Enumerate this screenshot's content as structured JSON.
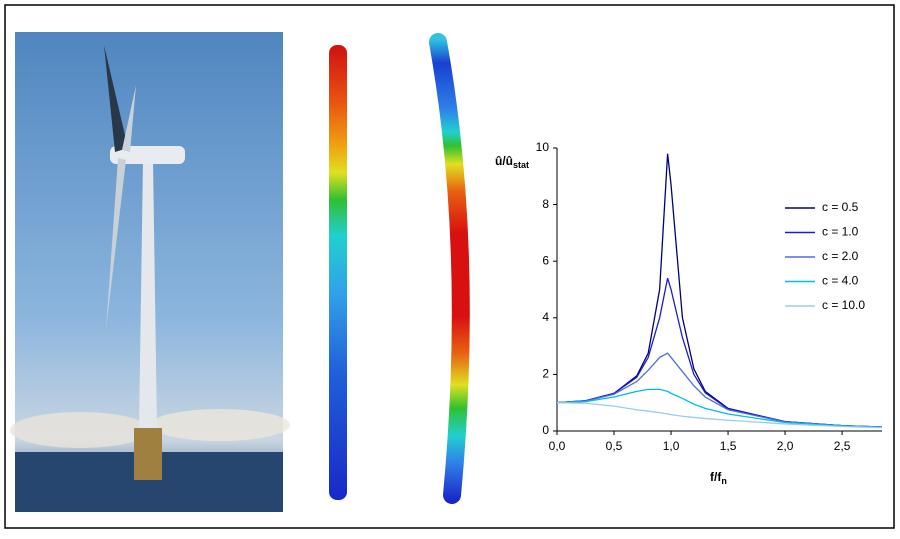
{
  "chart_data": {
    "type": "line",
    "y_label": "û/û",
    "y_label_sub": "stat",
    "x_label": "f/f",
    "x_label_sub": "n",
    "x": [
      0,
      0.25,
      0.5,
      0.7,
      0.8,
      0.9,
      0.97,
      1.0,
      1.1,
      1.2,
      1.3,
      1.5,
      2.0,
      2.5,
      2.85
    ],
    "series": [
      {
        "name": "c = 0.5",
        "color": "#000080",
        "values": [
          1,
          1.07,
          1.33,
          1.95,
          2.75,
          5.0,
          9.8,
          8.7,
          4.0,
          2.2,
          1.4,
          0.8,
          0.33,
          0.19,
          0.14
        ]
      },
      {
        "name": "c = 1.0",
        "color": "#1c1cc8",
        "values": [
          1,
          1.07,
          1.33,
          1.9,
          2.6,
          4.0,
          5.4,
          5.0,
          3.3,
          2.0,
          1.35,
          0.78,
          0.33,
          0.19,
          0.14
        ]
      },
      {
        "name": "c = 2.0",
        "color": "#4a6fe0",
        "values": [
          1,
          1.06,
          1.3,
          1.75,
          2.15,
          2.6,
          2.75,
          2.6,
          2.1,
          1.6,
          1.2,
          0.75,
          0.32,
          0.19,
          0.14
        ]
      },
      {
        "name": "c = 4.0",
        "color": "#00bce8",
        "values": [
          1,
          1.04,
          1.2,
          1.4,
          1.47,
          1.47,
          1.4,
          1.33,
          1.15,
          0.95,
          0.8,
          0.6,
          0.3,
          0.18,
          0.13
        ]
      },
      {
        "name": "c = 10.0",
        "color": "#99ccee",
        "values": [
          1,
          0.98,
          0.88,
          0.75,
          0.7,
          0.65,
          0.6,
          0.58,
          0.52,
          0.48,
          0.44,
          0.38,
          0.25,
          0.16,
          0.12
        ]
      }
    ],
    "xlim": [
      0,
      2.85
    ],
    "ylim": [
      0,
      10
    ],
    "xticks": [
      {
        "value": 0,
        "label": "0,0"
      },
      {
        "value": 0.5,
        "label": "0,5"
      },
      {
        "value": 1,
        "label": "1,0"
      },
      {
        "value": 1.5,
        "label": "1,5"
      },
      {
        "value": 2,
        "label": "2,0"
      },
      {
        "value": 2.5,
        "label": "2,5"
      }
    ],
    "yticks": [
      0,
      2,
      4,
      6,
      8,
      10
    ],
    "grid": false,
    "legend": "right"
  }
}
